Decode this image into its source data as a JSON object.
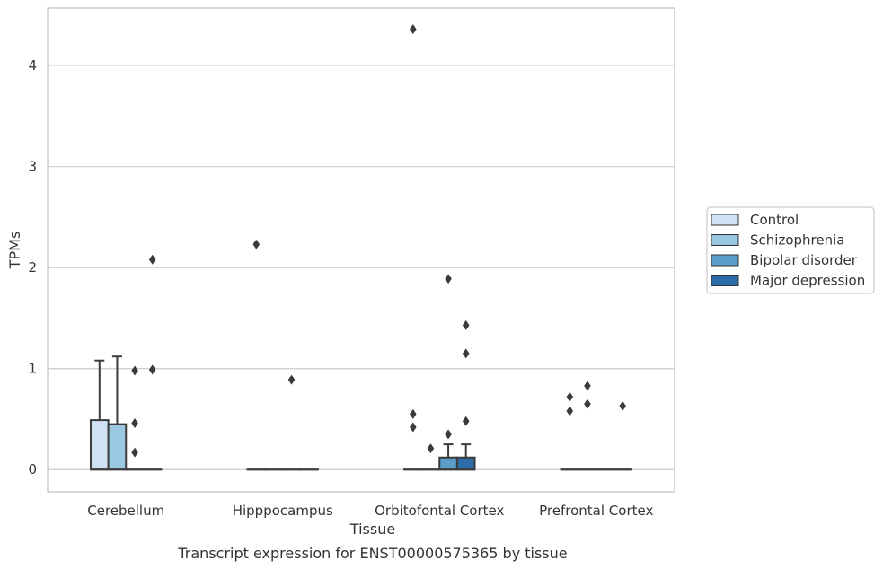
{
  "chart_data": {
    "type": "boxplot",
    "title": "",
    "caption": "Transcript expression for ENST00000575365 by tissue",
    "xlabel": "Tissue",
    "ylabel": "TPMs",
    "ylim": [
      -0.22,
      4.57
    ],
    "yticks": [
      0,
      1,
      2,
      3,
      4
    ],
    "grid": "horizontal",
    "legend_position": "right",
    "categories": [
      "Cerebellum",
      "Hipppocampus",
      "Orbitofontal Cortex",
      "Prefrontal Cortex"
    ],
    "series": [
      {
        "name": "Control",
        "color": "#cfe1f2",
        "boxes": [
          {
            "q1": 0,
            "median": 0,
            "q3": 0.49,
            "whisker_low": 0,
            "whisker_high": 1.08,
            "outliers": []
          },
          {
            "q1": 0,
            "median": 0,
            "q3": 0,
            "whisker_low": 0,
            "whisker_high": 0,
            "outliers": [
              2.23
            ]
          },
          {
            "q1": 0,
            "median": 0,
            "q3": 0,
            "whisker_low": 0,
            "whisker_high": 0,
            "outliers": [
              4.36,
              0.55,
              0.42
            ]
          },
          {
            "q1": 0,
            "median": 0,
            "q3": 0,
            "whisker_low": 0,
            "whisker_high": 0,
            "outliers": [
              0.72,
              0.58
            ]
          }
        ]
      },
      {
        "name": "Schizophrenia",
        "color": "#9ac8e0",
        "boxes": [
          {
            "q1": 0,
            "median": 0,
            "q3": 0.45,
            "whisker_low": 0,
            "whisker_high": 1.12,
            "outliers": []
          },
          {
            "q1": 0,
            "median": 0,
            "q3": 0,
            "whisker_low": 0,
            "whisker_high": 0,
            "outliers": []
          },
          {
            "q1": 0,
            "median": 0,
            "q3": 0,
            "whisker_low": 0,
            "whisker_high": 0,
            "outliers": [
              0.21
            ]
          },
          {
            "q1": 0,
            "median": 0,
            "q3": 0,
            "whisker_low": 0,
            "whisker_high": 0,
            "outliers": [
              0.83,
              0.65
            ]
          }
        ]
      },
      {
        "name": "Bipolar disorder",
        "color": "#5a9ecb",
        "boxes": [
          {
            "q1": 0,
            "median": 0,
            "q3": 0,
            "whisker_low": 0,
            "whisker_high": 0,
            "outliers": [
              0.98,
              0.46,
              0.17
            ]
          },
          {
            "q1": 0,
            "median": 0,
            "q3": 0,
            "whisker_low": 0,
            "whisker_high": 0,
            "outliers": [
              0.89
            ]
          },
          {
            "q1": 0,
            "median": 0,
            "q3": 0.12,
            "whisker_low": 0,
            "whisker_high": 0.25,
            "outliers": [
              1.89,
              0.35
            ]
          },
          {
            "q1": 0,
            "median": 0,
            "q3": 0,
            "whisker_low": 0,
            "whisker_high": 0,
            "outliers": []
          }
        ]
      },
      {
        "name": "Major depression",
        "color": "#2b6ca8",
        "boxes": [
          {
            "q1": 0,
            "median": 0,
            "q3": 0,
            "whisker_low": 0,
            "whisker_high": 0,
            "outliers": [
              2.08,
              0.99
            ]
          },
          {
            "q1": 0,
            "median": 0,
            "q3": 0,
            "whisker_low": 0,
            "whisker_high": 0,
            "outliers": []
          },
          {
            "q1": 0,
            "median": 0,
            "q3": 0.12,
            "whisker_low": 0,
            "whisker_high": 0.25,
            "outliers": [
              1.43,
              1.15,
              0.48
            ]
          },
          {
            "q1": 0,
            "median": 0,
            "q3": 0,
            "whisker_low": 0,
            "whisker_high": 0,
            "outliers": [
              0.63
            ]
          }
        ]
      }
    ]
  }
}
